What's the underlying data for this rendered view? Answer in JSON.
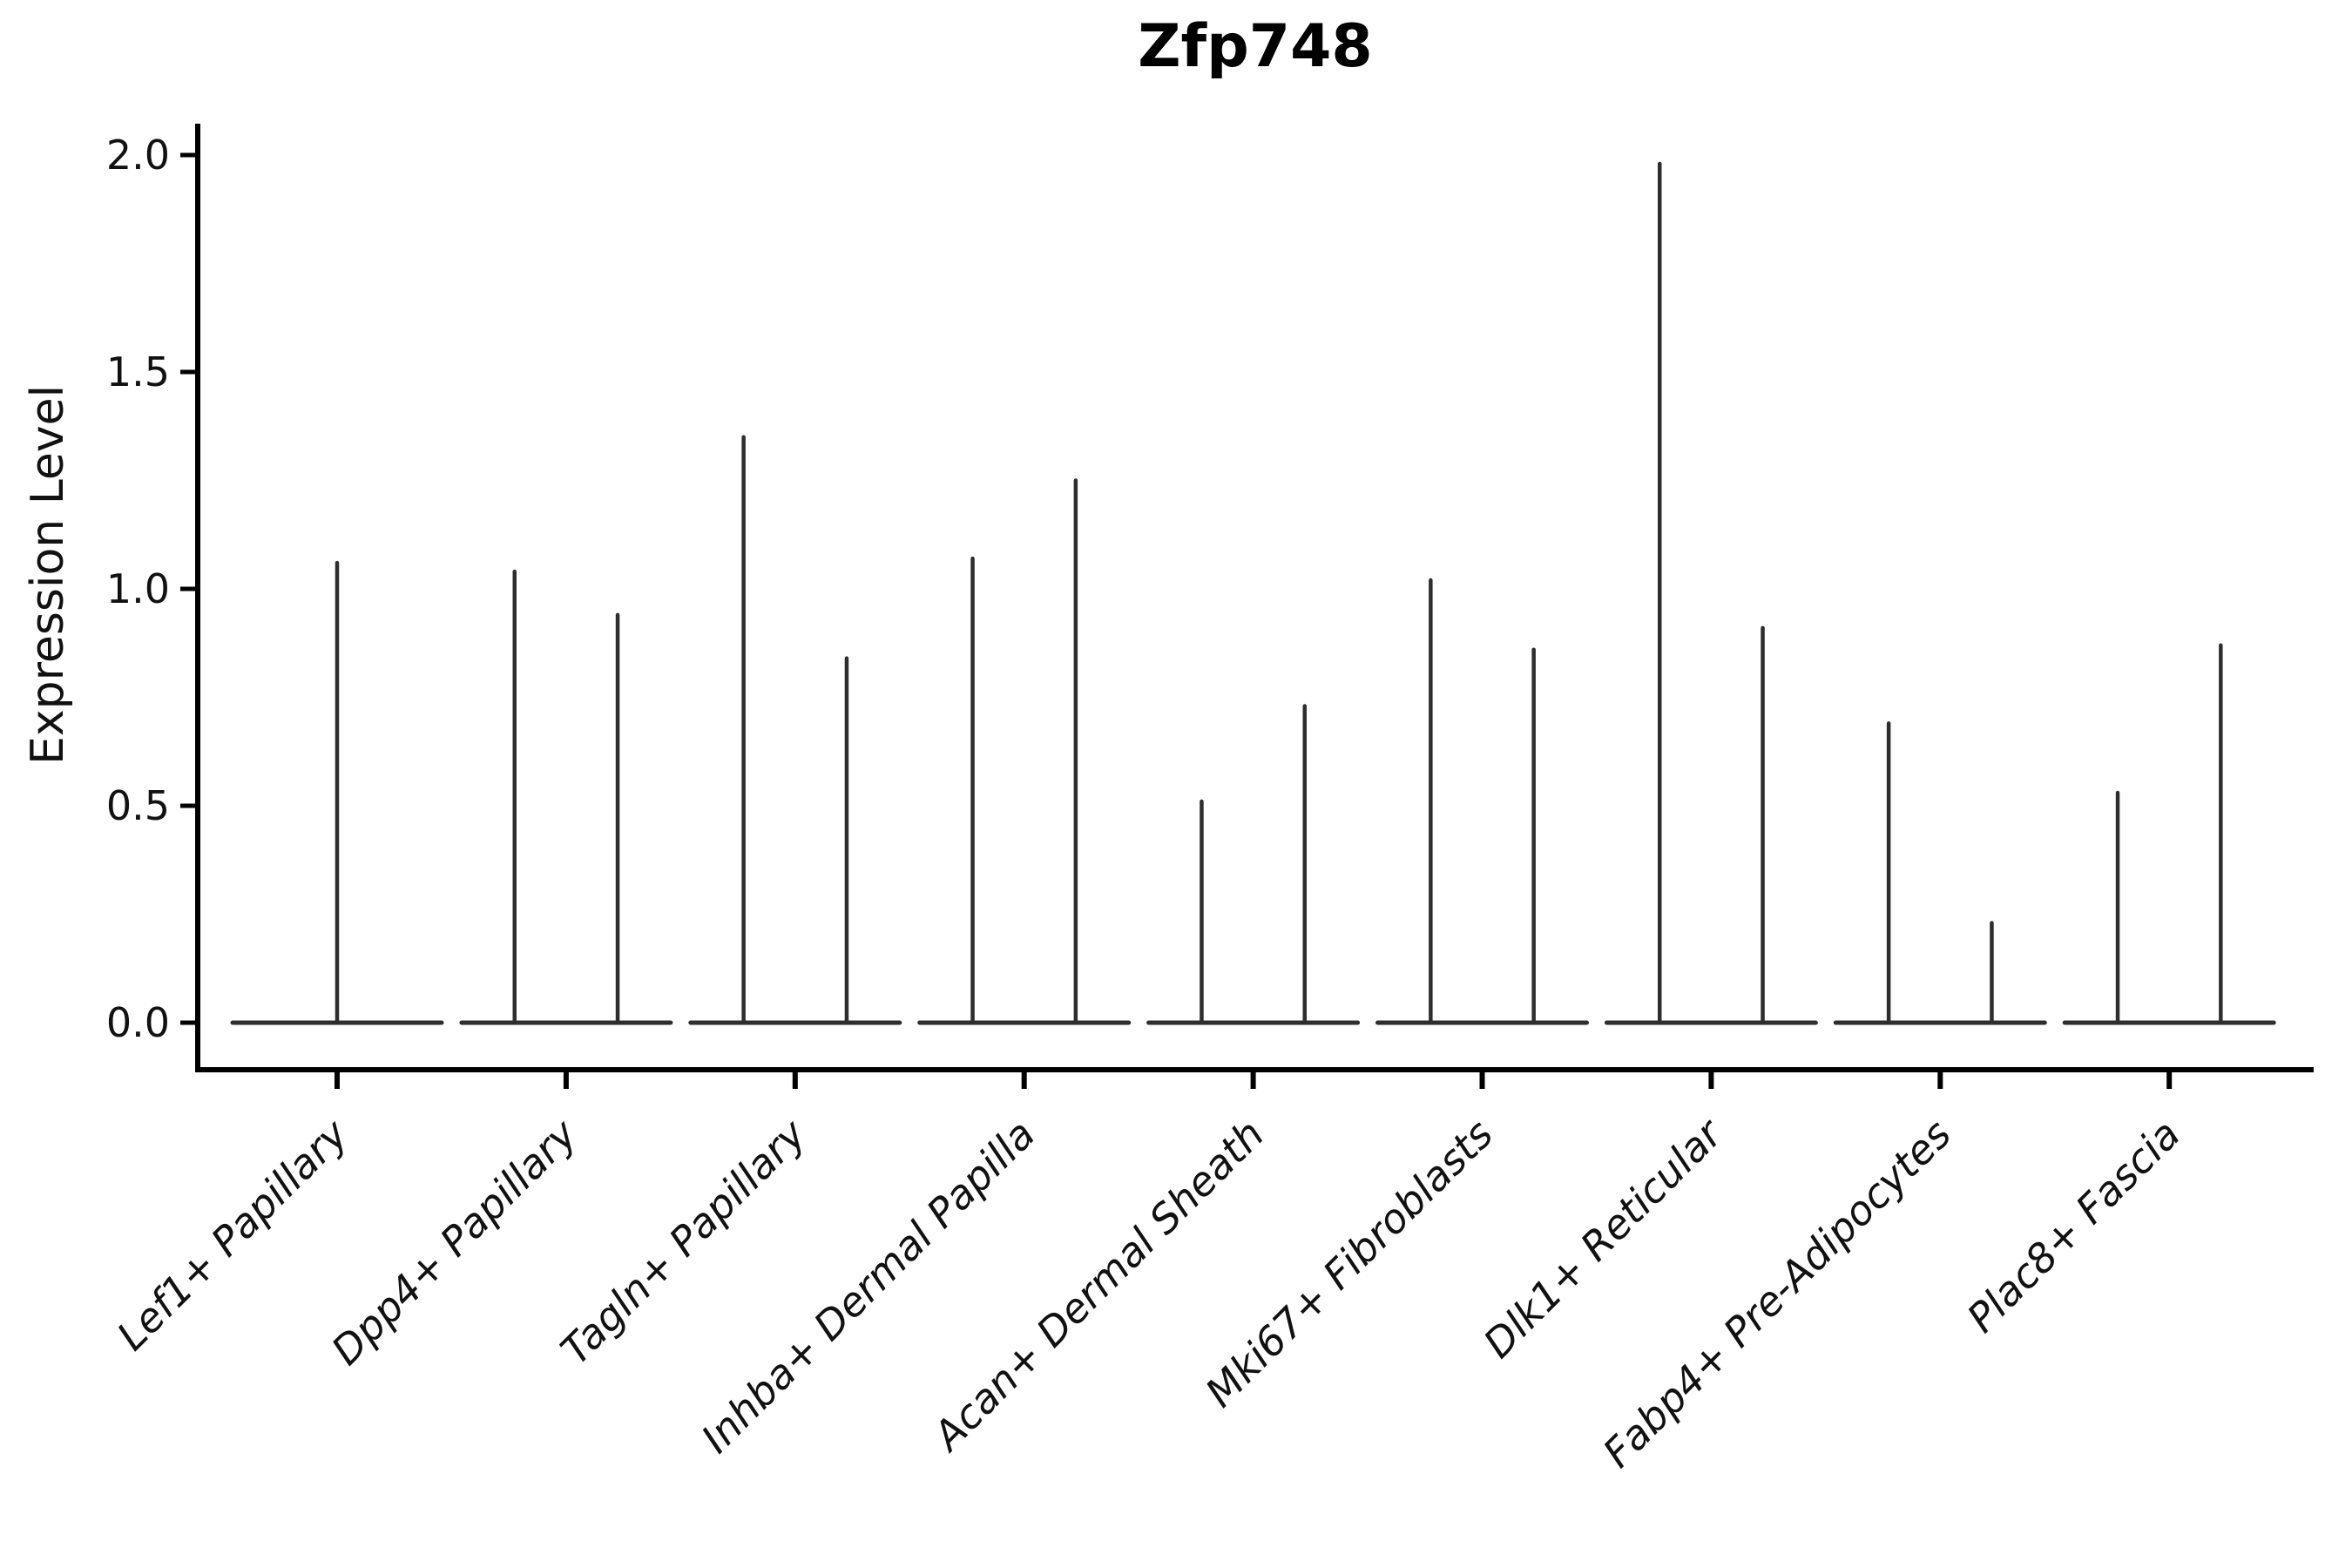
{
  "page": {
    "background": "#ffffff"
  },
  "title": {
    "text": "Zfp748"
  },
  "axes": {
    "ylabel": "Expression Level",
    "xlabel": ""
  },
  "chart_data": {
    "type": "violin",
    "title": "Zfp748",
    "xlabel": "",
    "ylabel": "Expression Level",
    "ylim": [
      -0.1,
      2.08
    ],
    "yticks": [
      0.0,
      0.5,
      1.0,
      1.5,
      2.0
    ],
    "ytick_labels": [
      "0.0",
      "0.5",
      "1.0",
      "1.5",
      "2.0"
    ],
    "grid": false,
    "legend": null,
    "xtick_rotation_deg": 45,
    "categories": [
      "Lef1+ Papillary",
      "Dpp4+ Papillary",
      "Tagln+ Papillary",
      "Inhba+ Dermal Papilla",
      "Acan+ Dermal Sheath",
      "Mki67+ Fibroblasts",
      "Dlk1+ Reticular",
      "Fabp4+ Pre-Adipocytes",
      "Plac8+ Fascia"
    ],
    "violins": [
      {
        "category": "Lef1+ Papillary",
        "base_value": 0.0,
        "spikes": [
          {
            "offset": 0.0,
            "peak": 1.06
          }
        ]
      },
      {
        "category": "Dpp4+ Papillary",
        "base_value": 0.0,
        "spikes": [
          {
            "offset": -0.225,
            "peak": 1.04
          },
          {
            "offset": 0.225,
            "peak": 0.94
          }
        ]
      },
      {
        "category": "Tagln+ Papillary",
        "base_value": 0.0,
        "spikes": [
          {
            "offset": -0.225,
            "peak": 1.35
          },
          {
            "offset": 0.225,
            "peak": 0.84
          }
        ]
      },
      {
        "category": "Inhba+ Dermal Papilla",
        "base_value": 0.0,
        "spikes": [
          {
            "offset": -0.225,
            "peak": 1.07
          },
          {
            "offset": 0.225,
            "peak": 1.25
          }
        ]
      },
      {
        "category": "Acan+ Dermal Sheath",
        "base_value": 0.0,
        "spikes": [
          {
            "offset": -0.225,
            "peak": 0.51
          },
          {
            "offset": 0.225,
            "peak": 0.73
          }
        ]
      },
      {
        "category": "Mki67+ Fibroblasts",
        "base_value": 0.0,
        "spikes": [
          {
            "offset": -0.225,
            "peak": 1.02
          },
          {
            "offset": 0.225,
            "peak": 0.86
          }
        ]
      },
      {
        "category": "Dlk1+ Reticular",
        "base_value": 0.0,
        "spikes": [
          {
            "offset": -0.225,
            "peak": 1.98
          },
          {
            "offset": 0.225,
            "peak": 0.91
          }
        ]
      },
      {
        "category": "Fabp4+ Pre-Adipocytes",
        "base_value": 0.0,
        "spikes": [
          {
            "offset": -0.225,
            "peak": 0.69
          },
          {
            "offset": 0.225,
            "peak": 0.23
          }
        ]
      },
      {
        "category": "Plac8+ Fascia",
        "base_value": 0.0,
        "spikes": [
          {
            "offset": -0.225,
            "peak": 0.53
          },
          {
            "offset": 0.225,
            "peak": 0.87
          }
        ]
      }
    ],
    "colors": {
      "violin": "#2e2e2e",
      "axis": "#000000",
      "text": "#111111",
      "background": "#ffffff"
    },
    "description": "Violin plot of Zfp748 expression across 9 dermal fibroblast cell types; each group shows a flat base at 0 with thin density spikes rising to the listed peak expression level."
  }
}
